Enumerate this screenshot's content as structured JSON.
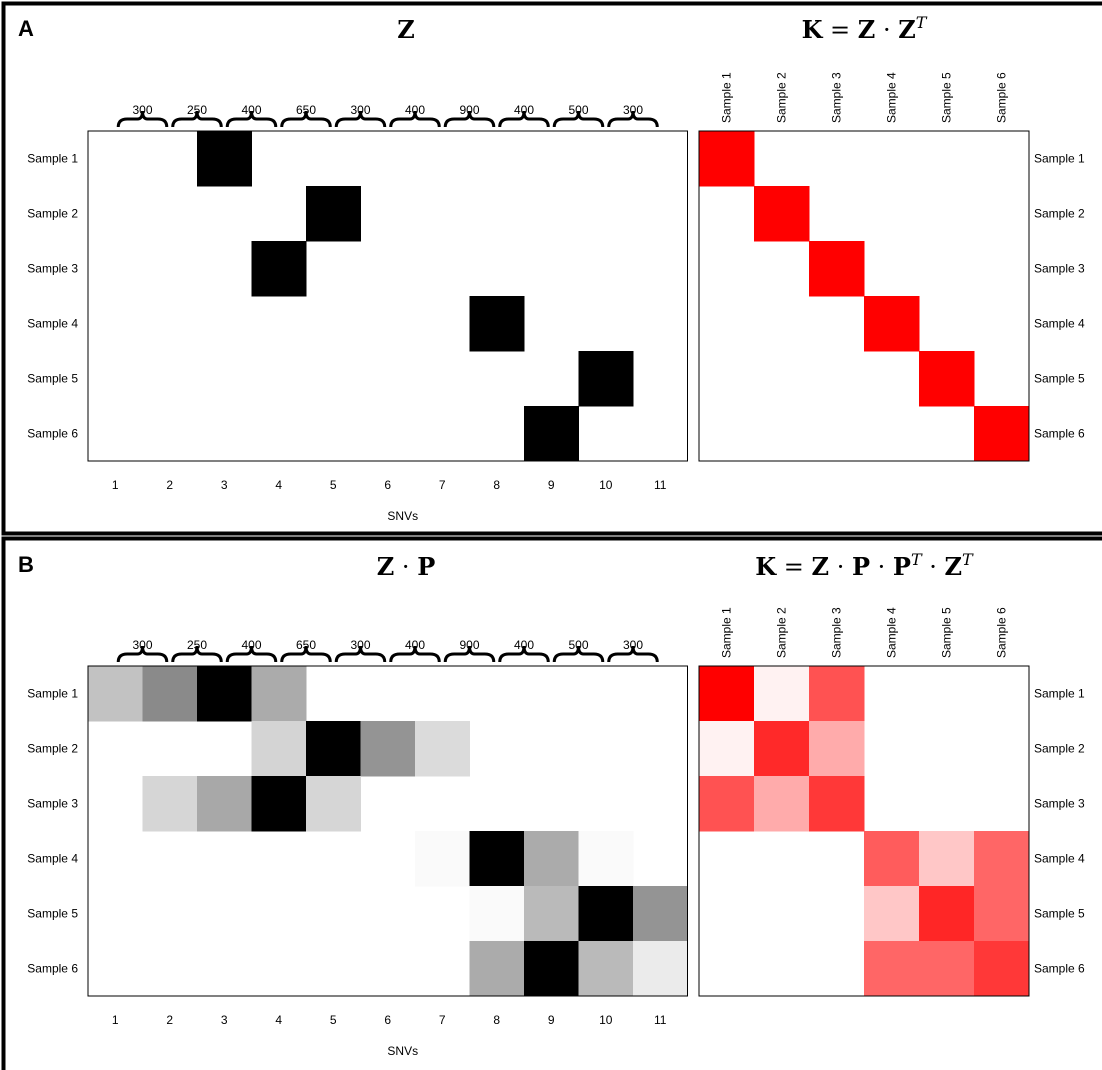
{
  "chart_data": [
    {
      "type": "heatmap",
      "panel": "A",
      "title": "Z",
      "xlabel": "SNVs",
      "x": [
        "1",
        "2",
        "3",
        "4",
        "5",
        "6",
        "7",
        "8",
        "9",
        "10",
        "11"
      ],
      "y": [
        "Sample 1",
        "Sample 2",
        "Sample 3",
        "Sample 4",
        "Sample 5",
        "Sample 6"
      ],
      "spacings": [
        "300",
        "250",
        "400",
        "650",
        "300",
        "400",
        "900",
        "400",
        "500",
        "300"
      ],
      "values": [
        [
          0,
          0,
          1,
          0,
          0,
          0,
          0,
          0,
          0,
          0,
          0
        ],
        [
          0,
          0,
          0,
          0,
          1,
          0,
          0,
          0,
          0,
          0,
          0
        ],
        [
          0,
          0,
          0,
          1,
          0,
          0,
          0,
          0,
          0,
          0,
          0
        ],
        [
          0,
          0,
          0,
          0,
          0,
          0,
          0,
          1,
          0,
          0,
          0
        ],
        [
          0,
          0,
          0,
          0,
          0,
          0,
          0,
          0,
          0,
          1,
          0
        ],
        [
          0,
          0,
          0,
          0,
          0,
          0,
          0,
          0,
          1,
          0,
          0
        ]
      ],
      "colormap": [
        "#ffffff",
        "#000000"
      ]
    },
    {
      "type": "heatmap",
      "panel": "A",
      "title": "K = Z · Z^T",
      "title_parts": {
        "lhs": "K",
        "a": "Z",
        "b": "Z",
        "sup": "T"
      },
      "x": [
        "Sample 1",
        "Sample 2",
        "Sample 3",
        "Sample 4",
        "Sample 5",
        "Sample 6"
      ],
      "y": [
        "Sample 1",
        "Sample 2",
        "Sample 3",
        "Sample 4",
        "Sample 5",
        "Sample 6"
      ],
      "values": [
        [
          1,
          0,
          0,
          0,
          0,
          0
        ],
        [
          0,
          1,
          0,
          0,
          0,
          0
        ],
        [
          0,
          0,
          1,
          0,
          0,
          0
        ],
        [
          0,
          0,
          0,
          1,
          0,
          0
        ],
        [
          0,
          0,
          0,
          0,
          1,
          0
        ],
        [
          0,
          0,
          0,
          0,
          0,
          1
        ]
      ],
      "colormap": [
        "#ffffff",
        "#ff0000"
      ]
    },
    {
      "type": "heatmap",
      "panel": "B",
      "title": "Z · P",
      "title_parts": {
        "a": "Z",
        "b": "P"
      },
      "xlabel": "SNVs",
      "x": [
        "1",
        "2",
        "3",
        "4",
        "5",
        "6",
        "7",
        "8",
        "9",
        "10",
        "11"
      ],
      "y": [
        "Sample 1",
        "Sample 2",
        "Sample 3",
        "Sample 4",
        "Sample 5",
        "Sample 6"
      ],
      "spacings": [
        "300",
        "250",
        "400",
        "650",
        "300",
        "400",
        "900",
        "400",
        "500",
        "300"
      ],
      "values": [
        [
          0.24,
          0.46,
          1.0,
          0.33,
          0,
          0,
          0,
          0,
          0,
          0,
          0
        ],
        [
          0,
          0,
          0,
          0.17,
          1.0,
          0.42,
          0.14,
          0,
          0,
          0,
          0
        ],
        [
          0,
          0.16,
          0.34,
          1.0,
          0.16,
          0,
          0,
          0,
          0,
          0,
          0
        ],
        [
          0,
          0,
          0,
          0,
          0,
          0,
          0.02,
          1.0,
          0.33,
          0.02,
          0
        ],
        [
          0,
          0,
          0,
          0,
          0,
          0,
          0,
          0.02,
          0.27,
          1.0,
          0.42
        ],
        [
          0,
          0,
          0,
          0,
          0,
          0,
          0,
          0.33,
          1.0,
          0.27,
          0.08
        ]
      ],
      "colormap": [
        "#ffffff",
        "#000000"
      ]
    },
    {
      "type": "heatmap",
      "panel": "B",
      "title": "K = Z · P · P^T · Z^T",
      "title_parts": {
        "lhs": "K",
        "a": "Z",
        "b": "P",
        "c": "P",
        "d": "Z",
        "sup": "T"
      },
      "x": [
        "Sample 1",
        "Sample 2",
        "Sample 3",
        "Sample 4",
        "Sample 5",
        "Sample 6"
      ],
      "y": [
        "Sample 1",
        "Sample 2",
        "Sample 3",
        "Sample 4",
        "Sample 5",
        "Sample 6"
      ],
      "values": [
        [
          1.0,
          0.05,
          0.68,
          0,
          0,
          0
        ],
        [
          0.05,
          0.84,
          0.33,
          0,
          0,
          0
        ],
        [
          0.68,
          0.33,
          0.78,
          0,
          0,
          0
        ],
        [
          0,
          0,
          0,
          0.64,
          0.22,
          0.6
        ],
        [
          0,
          0,
          0,
          0.22,
          0.85,
          0.6
        ],
        [
          0,
          0,
          0,
          0.6,
          0.6,
          0.78
        ]
      ],
      "colormap": [
        "#ffffff",
        "#ff0000"
      ]
    }
  ]
}
